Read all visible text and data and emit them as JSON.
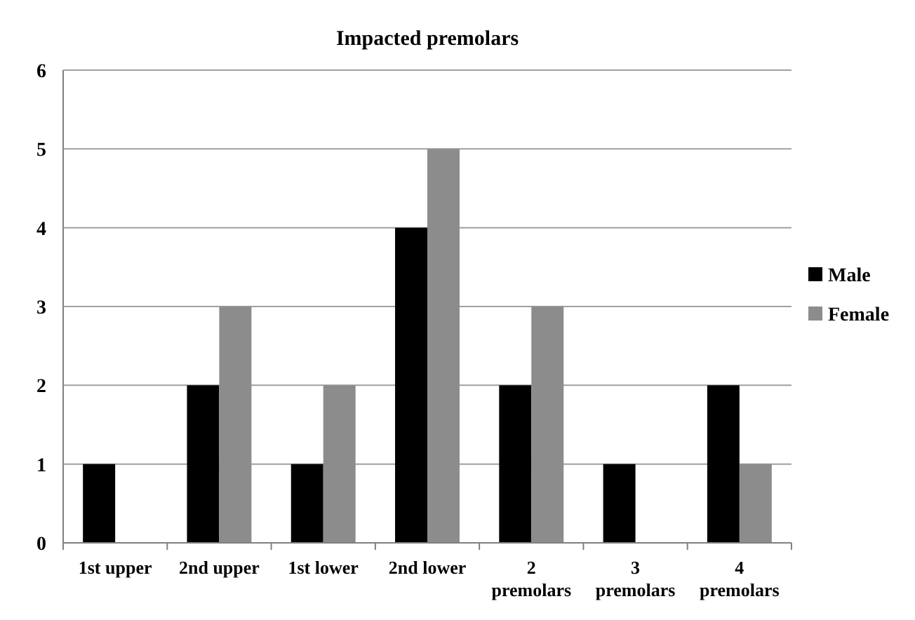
{
  "chart_data": {
    "type": "bar",
    "title": "Impacted premolars",
    "categories": [
      "1st upper",
      "2nd upper",
      "1st lower",
      "2nd lower",
      "2\npremolars",
      "3\npremolars",
      "4\npremolars"
    ],
    "series": [
      {
        "name": "Male",
        "color": "#000000",
        "values": [
          1,
          2,
          1,
          4,
          2,
          1,
          2
        ]
      },
      {
        "name": "Female",
        "color": "#8c8c8c",
        "values": [
          0,
          3,
          2,
          5,
          3,
          0,
          1
        ]
      }
    ],
    "ylim": [
      0,
      6
    ],
    "yticks": [
      0,
      1,
      2,
      3,
      4,
      5,
      6
    ],
    "grid": "y",
    "legend": "right"
  }
}
